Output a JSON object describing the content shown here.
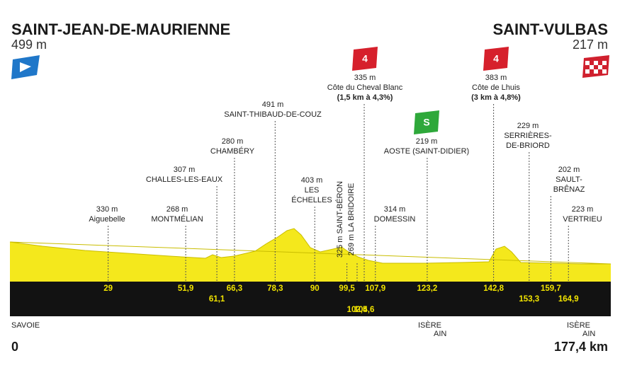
{
  "header": {
    "start": {
      "name": "SAINT-JEAN-DE-MAURIENNE",
      "altitude": "499 m"
    },
    "finish": {
      "name": "SAINT-VULBAS",
      "altitude": "217 m"
    }
  },
  "waypoints": [
    {
      "altitude": "330 m",
      "name": [
        "Aiguebelle"
      ],
      "km": "29"
    },
    {
      "altitude": "268 m",
      "name": [
        "MONTMÉLIAN"
      ],
      "km": "51,9"
    },
    {
      "altitude": "307 m",
      "name": [
        "CHALLES-LES-EAUX"
      ],
      "km": "61,1"
    },
    {
      "altitude": "280 m",
      "name": [
        "CHAMBÉRY"
      ],
      "km": "66,3"
    },
    {
      "altitude": "491 m",
      "name": [
        "SAINT-THIBAUD-DE-COUZ"
      ],
      "km": "78,3"
    },
    {
      "altitude": "403 m",
      "name": [
        "LES",
        "ÉCHELLES"
      ],
      "km": "90"
    },
    {
      "altitude": "325 m",
      "name": [
        "SAINT-BÉRON"
      ],
      "km": "99,5"
    },
    {
      "altitude": "269 m",
      "name": [
        "LA BRIDOIRE"
      ],
      "km": "102,5"
    },
    {
      "altitude": "335 m",
      "name": [
        "Côte du Cheval Blanc"
      ],
      "detail": "(1,5 km à 4,3%)",
      "badge": "4",
      "km": "104,6"
    },
    {
      "altitude": "314 m",
      "name": [
        "DOMESSIN"
      ],
      "km": "107,9"
    },
    {
      "altitude": "219 m",
      "name": [
        "AOSTE (SAINT-DIDIER)"
      ],
      "badge": "S",
      "km": "123,2"
    },
    {
      "altitude": "383 m",
      "name": [
        "Côte de Lhuis"
      ],
      "detail": "(3 km à 4,8%)",
      "badge": "4",
      "km": "142,8"
    },
    {
      "altitude": "229 m",
      "name": [
        "SERRIÈRES-",
        "DE-BRIORD"
      ],
      "km": "153,3"
    },
    {
      "altitude": "202 m",
      "name": [
        "SAULT-",
        "BRÊNAZ"
      ],
      "km": "159,7"
    },
    {
      "altitude": "223 m",
      "name": [
        "VERTRIEU"
      ],
      "km": "164,9"
    }
  ],
  "regions": [
    [
      "SAVOIE"
    ],
    [
      "ISÈRE",
      "AIN"
    ],
    [
      "ISÈRE",
      "AIN"
    ]
  ],
  "distance": {
    "start": "0",
    "end": "177,4 km"
  }
}
